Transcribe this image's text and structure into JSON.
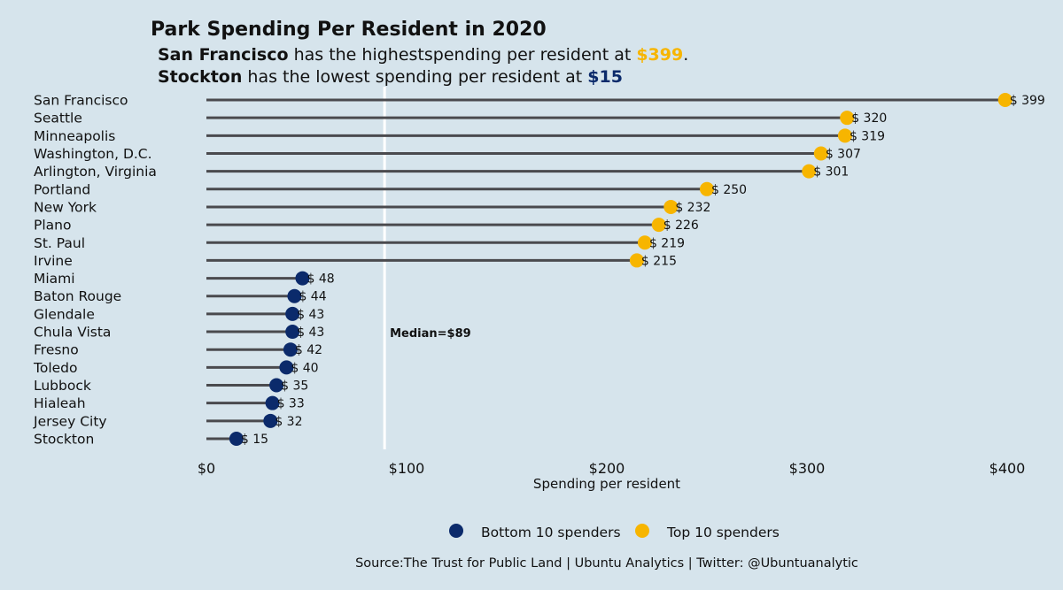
{
  "chart_data": {
    "type": "lollipop",
    "title": "Park Spending Per Resident in 2020",
    "subtitle_1": {
      "city": "San Francisco",
      "text": " has the highestspending per resident at ",
      "value": "$399",
      "end": "."
    },
    "subtitle_2": {
      "city": "Stockton",
      "text": " has the lowest spending per resident at ",
      "value": "$15"
    },
    "xlabel": "Spending per resident",
    "xlim": [
      0,
      400
    ],
    "xticks": [
      {
        "value": 0,
        "label": "$0"
      },
      {
        "value": 100,
        "label": "$100"
      },
      {
        "value": 200,
        "label": "$200"
      },
      {
        "value": 300,
        "label": "$300"
      },
      {
        "value": 400,
        "label": "$400"
      }
    ],
    "median": {
      "value": 89,
      "label": "Median=$89"
    },
    "value_prefix": "$ ",
    "categories": [
      "San Francisco",
      "Seattle",
      "Minneapolis",
      "Washington, D.C.",
      "Arlington, Virginia",
      "Portland",
      "New York",
      "Plano",
      "St. Paul",
      "Irvine",
      "Miami",
      "Baton Rouge",
      "Glendale",
      "Chula Vista",
      "Fresno",
      "Toledo",
      "Lubbock",
      "Hialeah",
      "Jersey City",
      "Stockton"
    ],
    "values": [
      399,
      320,
      319,
      307,
      301,
      250,
      232,
      226,
      219,
      215,
      48,
      44,
      43,
      43,
      42,
      40,
      35,
      33,
      32,
      15
    ],
    "groups": [
      "top",
      "top",
      "top",
      "top",
      "top",
      "top",
      "top",
      "top",
      "top",
      "top",
      "bottom",
      "bottom",
      "bottom",
      "bottom",
      "bottom",
      "bottom",
      "bottom",
      "bottom",
      "bottom",
      "bottom"
    ],
    "series": [
      {
        "name": "Bottom 10 spenders",
        "key": "bottom",
        "color": "#0b2a6b"
      },
      {
        "name": "Top 10 spenders",
        "key": "top",
        "color": "#f7b500"
      }
    ],
    "stem_color": "#4a4a4e",
    "median_color": "#ffffff",
    "subtitle_colors": {
      "high": "#f7b500",
      "low": "#0b2a6b"
    },
    "legend_position": "bottom",
    "grid": false,
    "caption": "Source:The Trust for Public Land | Ubuntu Analytics | Twitter: @Ubuntuanalytic"
  }
}
